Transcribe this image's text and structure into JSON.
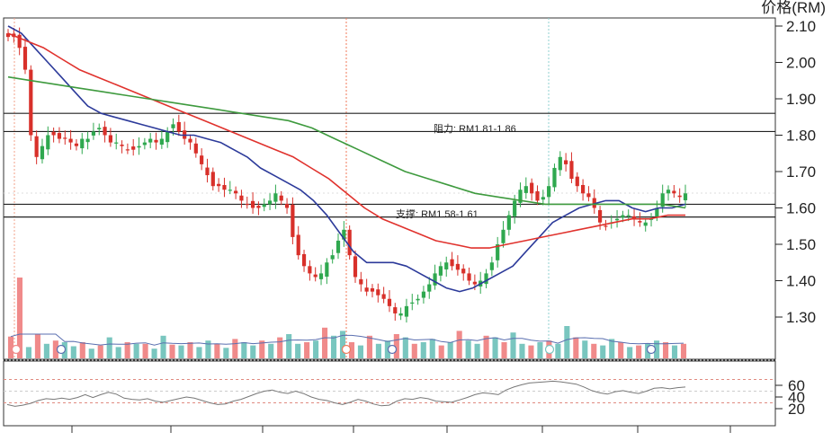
{
  "price_axis_title": "价格(RM)",
  "chart_data": [
    {
      "type": "candlestick",
      "panel": "price",
      "ylabel": "价格(RM)",
      "ylim": [
        1.2,
        2.1
      ],
      "yticks": [
        "2.10",
        "2.00",
        "1.90",
        "1.80",
        "1.70",
        "1.60",
        "1.50",
        "1.40",
        "1.30"
      ],
      "ytick_values": [
        2.1,
        2.0,
        1.9,
        1.8,
        1.7,
        1.6,
        1.5,
        1.4,
        1.3
      ],
      "grid": false,
      "colors": {
        "up": "#2fa84f",
        "down": "#d8302a",
        "ma_short": "#2c3a9a",
        "ma_mid": "#e0322d",
        "ma_long": "#3e9a3e"
      },
      "resistance": {
        "label": "阻力: RM1.81-1.86",
        "levels": [
          1.81,
          1.86
        ]
      },
      "support": {
        "label": "支撑: RM1.58-1.61",
        "levels": [
          1.575,
          1.61
        ]
      },
      "candles_close_approx": [
        2.07,
        2.07,
        2.04,
        1.98,
        1.8,
        1.74,
        1.77,
        1.8,
        1.8,
        1.79,
        1.79,
        1.78,
        1.77,
        1.79,
        1.79,
        1.81,
        1.82,
        1.8,
        1.78,
        1.78,
        1.77,
        1.76,
        1.76,
        1.77,
        1.78,
        1.79,
        1.78,
        1.79,
        1.81,
        1.83,
        1.81,
        1.79,
        1.78,
        1.75,
        1.72,
        1.69,
        1.66,
        1.66,
        1.65,
        1.65,
        1.64,
        1.62,
        1.61,
        1.6,
        1.6,
        1.61,
        1.62,
        1.64,
        1.62,
        1.6,
        1.52,
        1.47,
        1.44,
        1.42,
        1.41,
        1.42,
        1.45,
        1.47,
        1.51,
        1.54,
        1.47,
        1.41,
        1.39,
        1.37,
        1.37,
        1.36,
        1.35,
        1.33,
        1.31,
        1.31,
        1.33,
        1.34,
        1.35,
        1.37,
        1.39,
        1.42,
        1.44,
        1.45,
        1.44,
        1.43,
        1.42,
        1.4,
        1.39,
        1.4,
        1.42,
        1.45,
        1.5,
        1.54,
        1.58,
        1.62,
        1.65,
        1.66,
        1.64,
        1.62,
        1.63,
        1.66,
        1.71,
        1.74,
        1.72,
        1.68,
        1.66,
        1.64,
        1.63,
        1.6,
        1.56,
        1.55,
        1.56,
        1.57,
        1.58,
        1.58,
        1.57,
        1.56,
        1.56,
        1.57,
        1.6,
        1.64,
        1.65,
        1.64,
        1.63,
        1.64
      ],
      "series": [
        {
          "role": "ma_short",
          "values": [
            2.1,
            2.08,
            2.04,
            2.0,
            1.96,
            1.92,
            1.88,
            1.86,
            1.85,
            1.84,
            1.83,
            1.82,
            1.81,
            1.8,
            1.8,
            1.79,
            1.78,
            1.76,
            1.74,
            1.71,
            1.69,
            1.67,
            1.65,
            1.62,
            1.58,
            1.53,
            1.48,
            1.45,
            1.45,
            1.45,
            1.44,
            1.42,
            1.4,
            1.38,
            1.37,
            1.38,
            1.4,
            1.42,
            1.44,
            1.48,
            1.52,
            1.56,
            1.58,
            1.6,
            1.61,
            1.62,
            1.62,
            1.6,
            1.59,
            1.6,
            1.6,
            1.61
          ]
        },
        {
          "role": "ma_mid",
          "values": [
            2.08,
            2.06,
            2.04,
            2.01,
            1.98,
            1.96,
            1.94,
            1.92,
            1.9,
            1.88,
            1.86,
            1.84,
            1.82,
            1.8,
            1.78,
            1.76,
            1.74,
            1.71,
            1.68,
            1.64,
            1.6,
            1.57,
            1.55,
            1.53,
            1.51,
            1.5,
            1.49,
            1.49,
            1.5,
            1.51,
            1.52,
            1.53,
            1.54,
            1.55,
            1.56,
            1.57,
            1.57,
            1.58,
            1.58
          ]
        },
        {
          "role": "ma_long",
          "values": [
            1.96,
            1.95,
            1.94,
            1.93,
            1.92,
            1.91,
            1.9,
            1.89,
            1.88,
            1.87,
            1.86,
            1.85,
            1.84,
            1.82,
            1.79,
            1.76,
            1.73,
            1.7,
            1.68,
            1.66,
            1.64,
            1.63,
            1.62,
            1.61,
            1.61,
            1.61,
            1.61,
            1.61,
            1.61,
            1.6
          ]
        }
      ]
    },
    {
      "type": "bar",
      "panel": "volume",
      "colors": {
        "up": "#79c6bf",
        "down": "#f08a8a"
      },
      "values_relative": [
        0.27,
        1.0,
        0.14,
        0.3,
        0.18,
        0.22,
        0.2,
        0.15,
        0.2,
        0.12,
        0.16,
        0.26,
        0.14,
        0.2,
        0.18,
        0.18,
        0.12,
        0.28,
        0.17,
        0.16,
        0.2,
        0.14,
        0.22,
        0.18,
        0.13,
        0.24,
        0.2,
        0.16,
        0.22,
        0.18,
        0.26,
        0.3,
        0.18,
        0.2,
        0.22,
        0.38,
        0.28,
        0.34,
        0.2,
        0.16,
        0.28,
        0.18,
        0.22,
        0.3,
        0.26,
        0.18,
        0.2,
        0.24,
        0.16,
        0.2,
        0.34,
        0.22,
        0.18,
        0.28,
        0.26,
        0.2,
        0.32,
        0.18,
        0.16,
        0.2,
        0.22,
        0.18,
        0.4,
        0.26,
        0.22,
        0.18,
        0.16,
        0.24,
        0.2,
        0.14,
        0.16,
        0.18,
        0.22,
        0.2,
        0.16,
        0.18
      ]
    },
    {
      "type": "line",
      "panel": "rsi",
      "ylim": [
        15,
        70
      ],
      "yticks": [
        "60",
        "40",
        "20"
      ],
      "ytick_values": [
        60,
        40,
        20
      ],
      "reference_levels": [
        70,
        50,
        30
      ],
      "values": [
        27,
        24,
        26,
        29,
        34,
        37,
        36,
        38,
        36,
        39,
        44,
        39,
        44,
        48,
        45,
        38,
        36,
        35,
        37,
        33,
        31,
        34,
        37,
        40,
        38,
        34,
        30,
        27,
        28,
        33,
        36,
        41,
        46,
        50,
        52,
        48,
        46,
        50,
        46,
        40,
        36,
        34,
        30,
        27,
        31,
        36,
        33,
        28,
        25,
        26,
        33,
        37,
        36,
        39,
        37,
        33,
        32,
        31,
        35,
        39,
        44,
        47,
        46,
        44,
        52,
        57,
        61,
        64,
        65,
        66,
        67,
        66,
        64,
        62,
        57,
        51,
        47,
        45,
        49,
        51,
        48,
        46,
        50,
        55,
        56,
        54,
        56,
        57
      ]
    }
  ]
}
